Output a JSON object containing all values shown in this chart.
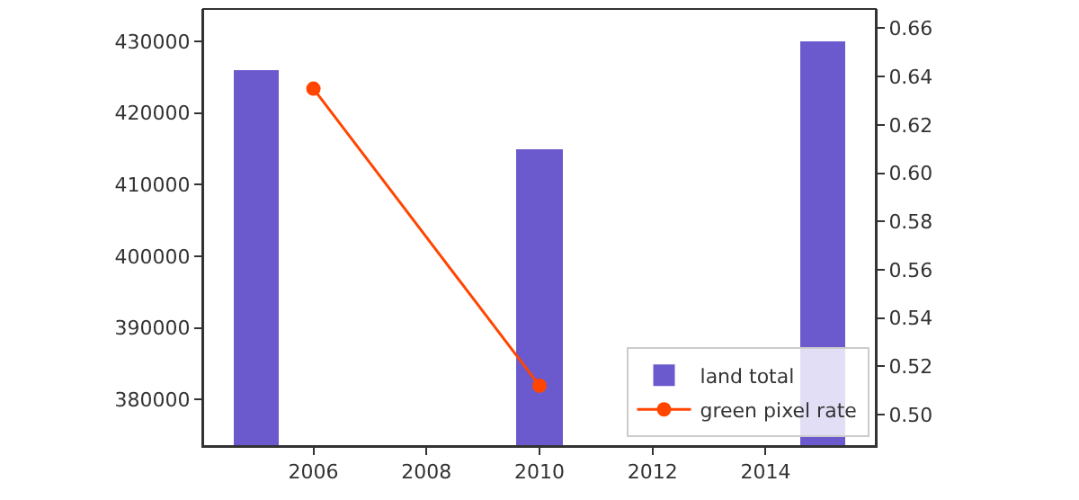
{
  "chart_data": {
    "type": "bar",
    "series": [
      {
        "name": "land total",
        "color": "#6a5acd",
        "x": [
          2005,
          2010,
          2015
        ],
        "values": [
          426000,
          415000,
          430000
        ]
      },
      {
        "name": "green pixel rate",
        "type": "line",
        "axis": "y2",
        "color": "#ff4500",
        "x": [
          2006,
          2010
        ],
        "values": [
          0.635,
          0.512
        ],
        "marker": "circle"
      }
    ],
    "xlim": [
      2004.05,
      2015.95
    ],
    "xticks": [
      2006,
      2008,
      2010,
      2012,
      2014
    ],
    "ylim": [
      373500,
      434500
    ],
    "yticks": [
      380000,
      390000,
      400000,
      410000,
      420000,
      430000
    ],
    "y2lim": [
      0.487,
      0.668
    ],
    "y2ticks": [
      {
        "value": 0.5,
        "label": "0.50"
      },
      {
        "value": 0.52,
        "label": "0.52"
      },
      {
        "value": 0.54,
        "label": "0.54"
      },
      {
        "value": 0.56,
        "label": "0.56"
      },
      {
        "value": 0.58,
        "label": "0.58"
      },
      {
        "value": 0.6,
        "label": "0.60"
      },
      {
        "value": 0.62,
        "label": "0.62"
      },
      {
        "value": 0.64,
        "label": "0.64"
      },
      {
        "value": 0.66,
        "label": "0.66"
      }
    ],
    "legend": "bottom right"
  }
}
